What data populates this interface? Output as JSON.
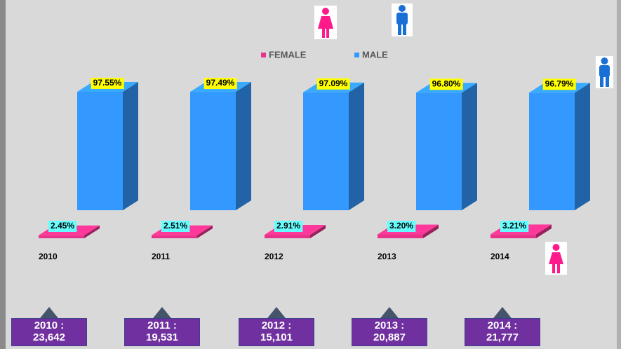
{
  "chart_data": {
    "type": "bar",
    "categories": [
      "2010",
      "2011",
      "2012",
      "2013",
      "2014"
    ],
    "series": [
      {
        "name": "FEMALE",
        "color": "#e8338a",
        "values": [
          2.45,
          2.51,
          2.91,
          3.2,
          3.21
        ],
        "value_labels": [
          "2.45%",
          "2.51%",
          "2.91%",
          "3.20%",
          "3.21%"
        ]
      },
      {
        "name": "MALE",
        "color": "#3399ff",
        "values": [
          97.55,
          97.49,
          97.09,
          96.8,
          96.79
        ],
        "value_labels": [
          "97.55%",
          "97.49%",
          "97.09%",
          "96.80%",
          "96.79%"
        ]
      }
    ]
  },
  "totals": [
    "2010 :\n23,642",
    "2011 :\n19,531",
    "2012 :\n15,101",
    "2013 :\n20,887",
    "2014 :\n21,777"
  ]
}
